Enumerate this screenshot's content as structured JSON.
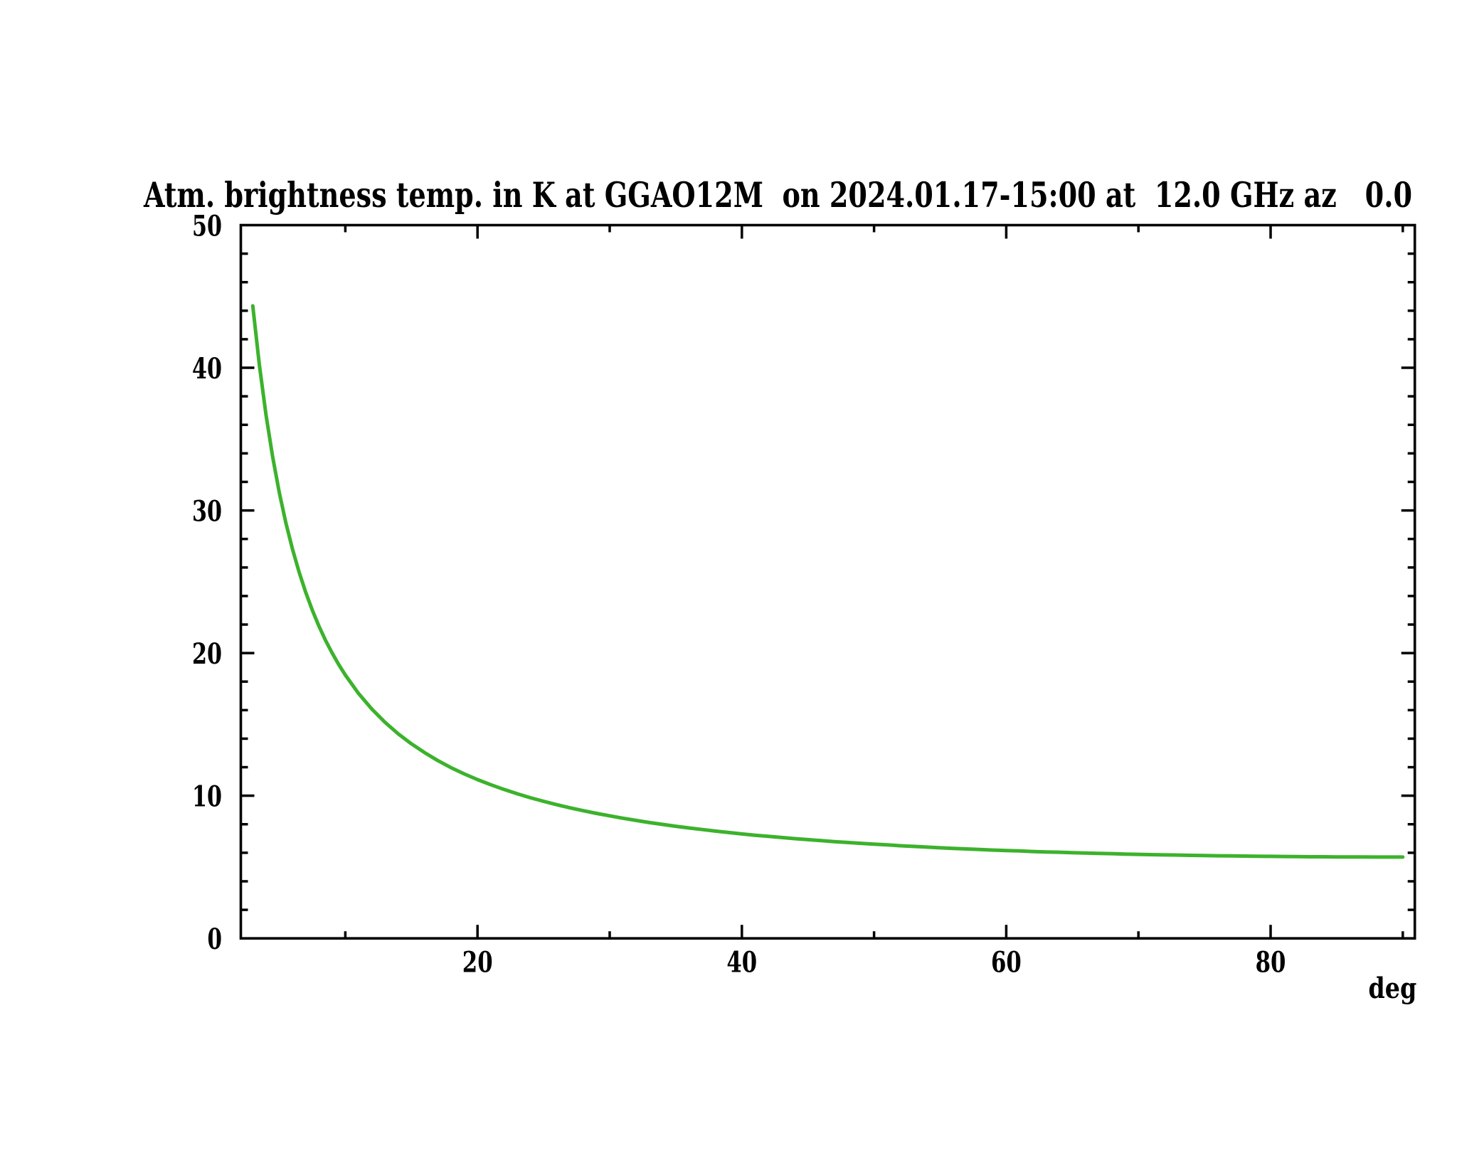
{
  "page": {
    "background_color": "#ffffff",
    "kind": "scientific line plot"
  },
  "chart_data": {
    "type": "line",
    "title": "Atm. brightness temp. in K at GGAO12M  on 2024.01.17-15:00 at  12.0 GHz az   0.0",
    "xlabel": "deg",
    "ylabel": "",
    "xlim": [
      2.1,
      90.9
    ],
    "ylim": [
      0,
      50
    ],
    "x_ticks_labeled": [
      20,
      40,
      60,
      80
    ],
    "x_tick_labels": [
      "20",
      "40",
      "60",
      "80"
    ],
    "x_ticks_minor": [
      10,
      30,
      50,
      70,
      90
    ],
    "y_ticks_labeled": [
      0,
      10,
      20,
      30,
      40,
      50
    ],
    "y_tick_labels": [
      "0",
      "10",
      "20",
      "30",
      "40",
      "50"
    ],
    "y_minor_step": 2,
    "grid": false,
    "legend": "none",
    "frame_color": "#000000",
    "series": [
      {
        "name": "atmospheric brightness temperature",
        "color": "#3cb22c",
        "points": [
          [
            3.0,
            44.34
          ],
          [
            3.5,
            40.19
          ],
          [
            4.0,
            36.7
          ],
          [
            4.5,
            33.77
          ],
          [
            5.0,
            31.27
          ],
          [
            5.5,
            29.13
          ],
          [
            6.0,
            27.29
          ],
          [
            6.5,
            25.68
          ],
          [
            7.0,
            24.26
          ],
          [
            7.5,
            23.01
          ],
          [
            8.0,
            21.9
          ],
          [
            8.5,
            20.9
          ],
          [
            9.0,
            20.01
          ],
          [
            9.5,
            19.2
          ],
          [
            10.0,
            18.46
          ],
          [
            11.0,
            17.17
          ],
          [
            12.0,
            16.08
          ],
          [
            13.0,
            15.15
          ],
          [
            14.0,
            14.34
          ],
          [
            15.0,
            13.64
          ],
          [
            16.0,
            13.02
          ],
          [
            17.0,
            12.46
          ],
          [
            18.0,
            11.97
          ],
          [
            19.0,
            11.53
          ],
          [
            20.0,
            11.13
          ],
          [
            21.0,
            10.77
          ],
          [
            22.0,
            10.44
          ],
          [
            23.0,
            10.14
          ],
          [
            24.0,
            9.86
          ],
          [
            25.0,
            9.61
          ],
          [
            26.0,
            9.37
          ],
          [
            27.0,
            9.15
          ],
          [
            28.0,
            8.95
          ],
          [
            29.0,
            8.76
          ],
          [
            30.0,
            8.59
          ],
          [
            31.0,
            8.42
          ],
          [
            32.0,
            8.27
          ],
          [
            33.0,
            8.12
          ],
          [
            34.0,
            7.99
          ],
          [
            35.0,
            7.86
          ],
          [
            36.0,
            7.74
          ],
          [
            37.0,
            7.63
          ],
          [
            38.0,
            7.52
          ],
          [
            39.0,
            7.42
          ],
          [
            40.0,
            7.32
          ],
          [
            41.0,
            7.23
          ],
          [
            42.0,
            7.15
          ],
          [
            43.0,
            7.07
          ],
          [
            44.0,
            6.99
          ],
          [
            45.0,
            6.92
          ],
          [
            46.0,
            6.85
          ],
          [
            47.0,
            6.78
          ],
          [
            48.0,
            6.72
          ],
          [
            49.0,
            6.66
          ],
          [
            50.0,
            6.6
          ],
          [
            51.0,
            6.55
          ],
          [
            52.0,
            6.49
          ],
          [
            53.0,
            6.45
          ],
          [
            54.0,
            6.4
          ],
          [
            55.0,
            6.35
          ],
          [
            56.0,
            6.31
          ],
          [
            57.0,
            6.27
          ],
          [
            58.0,
            6.23
          ],
          [
            59.0,
            6.19
          ],
          [
            60.0,
            6.16
          ],
          [
            61.0,
            6.13
          ],
          [
            62.0,
            6.09
          ],
          [
            63.0,
            6.06
          ],
          [
            64.0,
            6.04
          ],
          [
            65.0,
            6.01
          ],
          [
            66.0,
            5.98
          ],
          [
            67.0,
            5.96
          ],
          [
            68.0,
            5.94
          ],
          [
            69.0,
            5.91
          ],
          [
            70.0,
            5.89
          ],
          [
            71.0,
            5.87
          ],
          [
            72.0,
            5.85
          ],
          [
            73.0,
            5.84
          ],
          [
            74.0,
            5.82
          ],
          [
            75.0,
            5.81
          ],
          [
            76.0,
            5.79
          ],
          [
            77.0,
            5.78
          ],
          [
            78.0,
            5.77
          ],
          [
            79.0,
            5.76
          ],
          [
            80.0,
            5.75
          ],
          [
            81.0,
            5.74
          ],
          [
            82.0,
            5.73
          ],
          [
            83.0,
            5.72
          ],
          [
            84.0,
            5.72
          ],
          [
            85.0,
            5.71
          ],
          [
            86.0,
            5.71
          ],
          [
            87.0,
            5.71
          ],
          [
            88.0,
            5.7
          ],
          [
            89.0,
            5.7
          ],
          [
            90.0,
            5.7
          ]
        ]
      }
    ]
  }
}
